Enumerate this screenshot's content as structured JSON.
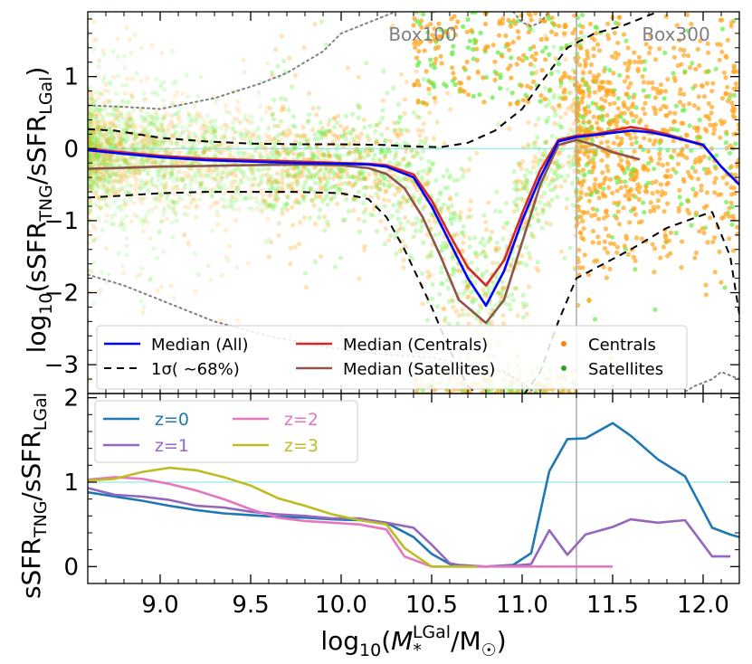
{
  "chart_data": [
    {
      "type": "scatter",
      "panel": "top",
      "ylabel": "log10(sSFR_TNG/sSFR_LGal)",
      "ylabel_parts": {
        "main": "log",
        "sub10": "10",
        "open": "(sSFR",
        "sub_tng": "TNG",
        "slash": "/sSFR",
        "sub_lgal": "LGal",
        "close": ")"
      },
      "xlim": [
        8.6,
        12.2
      ],
      "ylim": [
        -3.4,
        1.9
      ],
      "yticks": [
        1,
        0,
        -1,
        -2,
        -3
      ],
      "ytick_labels": [
        "1",
        "0",
        "−1",
        "−2",
        "−3"
      ],
      "reference_line_y": 0,
      "vertical_line_x": 11.3,
      "annotations": [
        {
          "text": "Box100",
          "x": 10.45,
          "y": 1.6
        },
        {
          "text": "Box300",
          "x": 11.85,
          "y": 1.6
        }
      ],
      "legend": {
        "placement": "bottom",
        "entries": [
          {
            "label": "Median (All)",
            "style": "solid",
            "color": "#0000ff"
          },
          {
            "label": "Median (Centrals)",
            "style": "solid",
            "color": "#d62728"
          },
          {
            "label": "Centrals",
            "style": "dot",
            "color": "#ff7f0e"
          },
          {
            "label": "1σ( ∼68%)",
            "style": "dashed",
            "color": "#000000"
          },
          {
            "label": "Median (Satellites)",
            "style": "solid",
            "color": "#8c564b"
          },
          {
            "label": "Satellites",
            "style": "dot",
            "color": "#2ca02c"
          }
        ]
      },
      "series": [
        {
          "name": "Median (All)",
          "color": "#0000ff",
          "x": [
            8.6,
            8.75,
            9.0,
            9.25,
            9.5,
            9.75,
            10.0,
            10.15,
            10.25,
            10.4,
            10.5,
            10.6,
            10.7,
            10.8,
            10.9,
            11.0,
            11.1,
            11.2,
            11.3,
            11.4,
            11.5,
            11.6,
            11.7,
            11.8,
            12.0,
            12.1,
            12.2
          ],
          "y": [
            -0.02,
            -0.06,
            -0.12,
            -0.16,
            -0.18,
            -0.2,
            -0.21,
            -0.22,
            -0.25,
            -0.4,
            -0.8,
            -1.3,
            -1.8,
            -2.18,
            -1.7,
            -1.0,
            -0.4,
            0.1,
            0.16,
            0.19,
            0.22,
            0.25,
            0.23,
            0.18,
            0.05,
            -0.25,
            -0.5
          ]
        },
        {
          "name": "Median (Centrals)",
          "color": "#d62728",
          "x": [
            8.6,
            8.75,
            9.0,
            9.25,
            9.5,
            9.75,
            10.0,
            10.15,
            10.25,
            10.4,
            10.5,
            10.6,
            10.7,
            10.8,
            10.9,
            11.0,
            11.1,
            11.2,
            11.3,
            11.4,
            11.5,
            11.6,
            11.7,
            11.8,
            12.0,
            12.1,
            12.2
          ],
          "y": [
            0.0,
            -0.04,
            -0.1,
            -0.14,
            -0.16,
            -0.18,
            -0.2,
            -0.21,
            -0.23,
            -0.36,
            -0.72,
            -1.2,
            -1.65,
            -1.9,
            -1.55,
            -0.9,
            -0.3,
            0.12,
            0.18,
            0.2,
            0.25,
            0.3,
            0.26,
            0.2,
            0.05,
            -0.25,
            -0.5
          ]
        },
        {
          "name": "Median (Satellites)",
          "color": "#8c564b",
          "x": [
            8.6,
            8.75,
            9.0,
            9.25,
            9.5,
            9.75,
            10.0,
            10.15,
            10.25,
            10.35,
            10.45,
            10.55,
            10.65,
            10.8,
            10.9,
            11.0,
            11.1,
            11.2,
            11.3,
            11.4,
            11.5,
            11.65
          ],
          "y": [
            -0.28,
            -0.27,
            -0.25,
            -0.24,
            -0.23,
            -0.22,
            -0.23,
            -0.27,
            -0.35,
            -0.55,
            -0.95,
            -1.5,
            -2.1,
            -2.42,
            -2.1,
            -1.3,
            -0.5,
            0.05,
            0.12,
            0.05,
            -0.05,
            -0.15
          ]
        },
        {
          "name": "1σ upper",
          "color": "#000000",
          "dashed": true,
          "x": [
            8.6,
            8.75,
            9.0,
            9.25,
            9.5,
            9.75,
            10.0,
            10.25,
            10.4,
            10.55,
            10.7,
            10.85,
            11.0,
            11.1,
            11.25,
            11.4,
            11.55,
            11.75
          ],
          "y": [
            0.27,
            0.25,
            0.15,
            0.1,
            0.07,
            0.06,
            0.06,
            0.05,
            0.03,
            0.02,
            0.08,
            0.25,
            0.55,
            0.9,
            1.4,
            1.6,
            1.7,
            1.9
          ]
        },
        {
          "name": "1σ lower",
          "color": "#000000",
          "dashed": true,
          "x": [
            8.6,
            8.75,
            9.0,
            9.25,
            9.5,
            9.75,
            10.0,
            10.15,
            10.25,
            10.35,
            10.5,
            10.6,
            10.7,
            10.8,
            11.0,
            11.1,
            11.2,
            11.3,
            11.45,
            11.6,
            11.8,
            12.0,
            12.05,
            12.15,
            12.2
          ],
          "y": [
            -0.68,
            -0.66,
            -0.62,
            -0.6,
            -0.6,
            -0.6,
            -0.62,
            -0.7,
            -0.95,
            -1.4,
            -2.2,
            -2.8,
            -3.3,
            -3.5,
            -3.45,
            -3.1,
            -2.4,
            -1.8,
            -1.6,
            -1.4,
            -1.1,
            -0.92,
            -0.88,
            -1.5,
            -2.3
          ]
        },
        {
          "name": "Box100 outer contour",
          "color": "#808080",
          "dotted": true,
          "x": [
            8.6,
            8.8,
            9.0,
            9.3,
            9.6,
            9.9,
            10.2,
            10.5,
            10.7,
            10.9,
            11.0,
            11.1
          ],
          "y": [
            -1.75,
            -1.9,
            -2.1,
            -2.4,
            -2.6,
            -2.75,
            -2.85,
            -2.9,
            -3.0,
            -3.1,
            -3.25,
            -3.45
          ]
        },
        {
          "name": "Box100 upper contour",
          "color": "#808080",
          "dotted": true,
          "x": [
            8.6,
            8.8,
            9.0,
            9.3,
            9.55,
            9.7,
            9.8,
            9.9,
            10.0,
            10.15,
            10.3
          ],
          "y": [
            0.6,
            0.58,
            0.55,
            0.7,
            0.9,
            1.05,
            1.2,
            1.35,
            1.6,
            1.75,
            1.9
          ]
        },
        {
          "name": "Box100 right contour",
          "color": "#808080",
          "dotted": true,
          "x": [
            10.95,
            11.0,
            11.05,
            11.1,
            11.15
          ],
          "y": [
            1.9,
            1.75,
            1.7,
            1.75,
            1.9
          ]
        },
        {
          "name": "Box300 lower contour",
          "color": "#808080",
          "dotted": true,
          "x": [
            11.85,
            11.95,
            12.05,
            12.1,
            12.15,
            12.2
          ],
          "y": [
            -3.45,
            -3.3,
            -3.2,
            -3.1,
            -3.15,
            -3.2
          ]
        }
      ]
    },
    {
      "type": "line",
      "panel": "bottom",
      "ylabel": "sSFR_TNG/sSFR_LGal",
      "ylabel_parts": {
        "main": "sSFR",
        "sub_tng": "TNG",
        "slash": "/sSFR",
        "sub_lgal": "LGal"
      },
      "xlabel": "log10(M*^LGal/M☉)",
      "xlabel_parts": {
        "main": "log",
        "sub10": "10",
        "open": "(",
        "m": "M",
        "sub_star": "*",
        "sup_lgal": "LGal",
        "slash": "/M",
        "sun": "☉",
        "close": ")"
      },
      "xlim": [
        8.6,
        12.2
      ],
      "ylim": [
        -0.2,
        2.05
      ],
      "xticks": [
        9.0,
        9.5,
        10.0,
        10.5,
        11.0,
        11.5,
        12.0
      ],
      "xtick_labels": [
        "9.0",
        "9.5",
        "10.0",
        "10.5",
        "11.0",
        "11.5",
        "12.0"
      ],
      "yticks": [
        0,
        1,
        2
      ],
      "ytick_labels": [
        "0",
        "1",
        "2"
      ],
      "reference_line_y": 1,
      "vertical_line_x": 11.3,
      "legend": {
        "placement": "top-left",
        "entries": [
          {
            "label": "z=0",
            "color": "#1f77b4"
          },
          {
            "label": "z=2",
            "color": "#e377c2"
          },
          {
            "label": "z=1",
            "color": "#9467bd"
          },
          {
            "label": "z=3",
            "color": "#bcbd22"
          }
        ]
      },
      "series": [
        {
          "name": "z=0",
          "color": "#1f77b4",
          "x": [
            8.6,
            8.75,
            8.9,
            9.05,
            9.2,
            9.35,
            9.5,
            9.65,
            9.8,
            9.95,
            10.1,
            10.25,
            10.4,
            10.5,
            10.6,
            10.65,
            10.8,
            10.95,
            11.05,
            11.15,
            11.25,
            11.35,
            11.5,
            11.6,
            11.75,
            11.9,
            12.05,
            12.15,
            12.2
          ],
          "y": [
            0.88,
            0.83,
            0.78,
            0.72,
            0.67,
            0.63,
            0.61,
            0.59,
            0.58,
            0.56,
            0.55,
            0.52,
            0.35,
            0.15,
            0.03,
            0.01,
            0.0,
            0.02,
            0.16,
            1.13,
            1.51,
            1.52,
            1.7,
            1.55,
            1.27,
            1.07,
            0.46,
            0.38,
            0.35
          ]
        },
        {
          "name": "z=1",
          "color": "#9467bd",
          "x": [
            8.6,
            8.75,
            8.9,
            9.05,
            9.2,
            9.35,
            9.5,
            9.65,
            9.8,
            9.95,
            10.1,
            10.25,
            10.4,
            10.5,
            10.6,
            10.65,
            10.8,
            10.95,
            11.05,
            11.15,
            11.25,
            11.35,
            11.5,
            11.6,
            11.75,
            11.9,
            12.05,
            12.15
          ],
          "y": [
            0.93,
            0.85,
            0.83,
            0.79,
            0.72,
            0.7,
            0.65,
            0.62,
            0.6,
            0.57,
            0.57,
            0.52,
            0.46,
            0.26,
            0.04,
            0.02,
            0.0,
            0.01,
            0.03,
            0.43,
            0.14,
            0.38,
            0.47,
            0.56,
            0.52,
            0.55,
            0.12,
            0.12
          ]
        },
        {
          "name": "z=2",
          "color": "#e377c2",
          "x": [
            8.6,
            8.75,
            8.9,
            9.05,
            9.2,
            9.35,
            9.5,
            9.65,
            9.8,
            9.95,
            10.1,
            10.25,
            10.35,
            10.5,
            10.6,
            10.8,
            10.95,
            11.05,
            11.15,
            11.25,
            11.35,
            11.5
          ],
          "y": [
            1.03,
            1.06,
            1.04,
            0.98,
            0.9,
            0.8,
            0.68,
            0.58,
            0.54,
            0.52,
            0.5,
            0.44,
            0.12,
            0.0,
            0.0,
            0.0,
            0.0,
            0.0,
            0.0,
            0.0,
            0.0,
            0.0
          ]
        },
        {
          "name": "z=3",
          "color": "#bcbd22",
          "x": [
            8.6,
            8.75,
            8.9,
            9.05,
            9.2,
            9.35,
            9.5,
            9.65,
            9.8,
            9.95,
            10.1,
            10.25,
            10.35,
            10.5,
            10.6,
            10.75
          ],
          "y": [
            1.02,
            1.04,
            1.12,
            1.17,
            1.14,
            1.06,
            0.96,
            0.81,
            0.72,
            0.62,
            0.55,
            0.5,
            0.22,
            0.0,
            0.0,
            0.0
          ]
        }
      ]
    }
  ]
}
